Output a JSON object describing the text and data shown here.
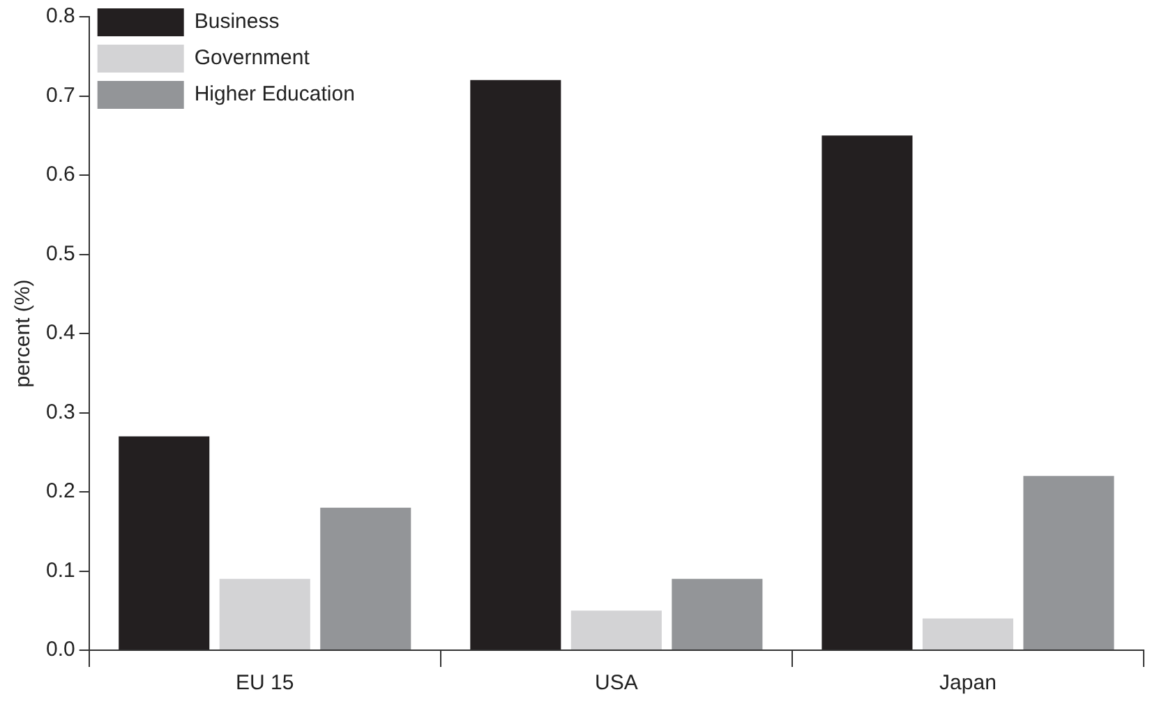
{
  "chart_data": {
    "type": "bar",
    "ylabel": "percent (%)",
    "categories": [
      "EU 15",
      "USA",
      "Japan"
    ],
    "series": [
      {
        "name": "Business",
        "color": "#231f20",
        "values": [
          0.27,
          0.72,
          0.65
        ]
      },
      {
        "name": "Government",
        "color": "#d3d3d5",
        "values": [
          0.09,
          0.05,
          0.04
        ]
      },
      {
        "name": "Higher Education",
        "color": "#939598",
        "values": [
          0.18,
          0.09,
          0.22
        ]
      }
    ],
    "ylim": [
      0,
      0.8
    ],
    "yticks": [
      {
        "value": 0,
        "label": "0.0"
      },
      0.1,
      0.2,
      0.3,
      0.4,
      0.5,
      0.6,
      0.7,
      0.8
    ],
    "grid": false,
    "legend": "top left"
  }
}
